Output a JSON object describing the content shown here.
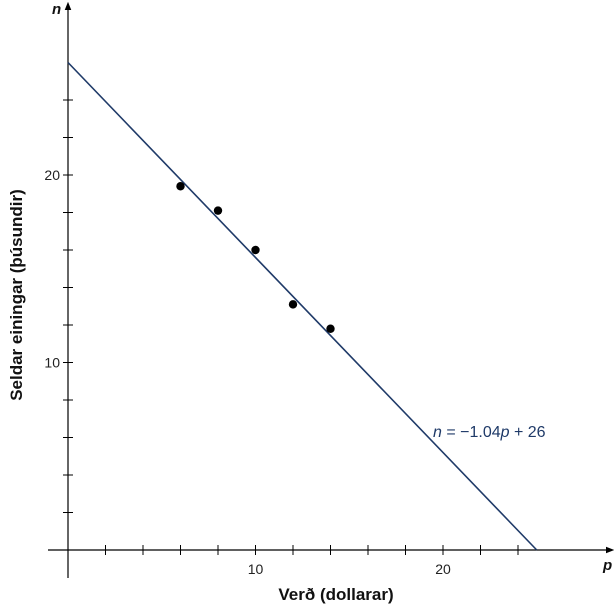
{
  "chart_data": {
    "type": "scatter",
    "xlabel": "Verð (dollarar)",
    "ylabel": "Seldar einingar (þúsundir)",
    "x_var": "p",
    "y_var": "n",
    "xlim": [
      0,
      25
    ],
    "ylim": [
      0,
      26
    ],
    "x_ticks": [
      2,
      4,
      6,
      8,
      10,
      12,
      14,
      16,
      18,
      20,
      22,
      24
    ],
    "y_ticks": [
      2,
      4,
      6,
      8,
      10,
      12,
      14,
      16,
      18,
      20,
      22,
      24
    ],
    "x_tick_labels": [
      "10",
      "20"
    ],
    "y_tick_labels": [
      "10",
      "20"
    ],
    "grid": false,
    "series": [
      {
        "x": [
          6,
          8,
          10,
          12,
          14
        ],
        "y": [
          19.4,
          18.1,
          16.0,
          13.1,
          11.8
        ]
      }
    ],
    "trend_line": {
      "slope": -1.04,
      "intercept": 26,
      "label_parts": [
        "n",
        " = −1.04",
        "p",
        " + 26"
      ]
    },
    "colors": {
      "line": "#1f3a68",
      "points": "#000000",
      "axes": "#000000"
    }
  }
}
